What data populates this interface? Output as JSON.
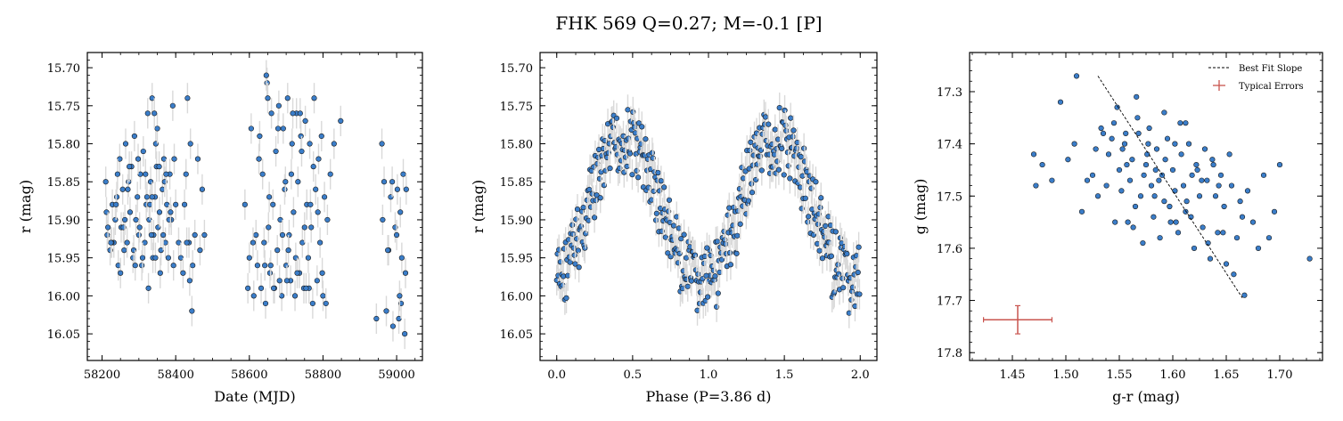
{
  "figure": {
    "title": "FHK 569  Q=0.27; M=-0.1 [P]",
    "point_color": "#3a7dc9",
    "point_edge_color": "#1a1a1a",
    "errorbar_color": "#d9d9d9",
    "typical_error_color": "#c9544f"
  },
  "chart_data": [
    {
      "type": "scatter",
      "xlabel": "Date (MJD)",
      "ylabel": "r (mag)",
      "xlim": [
        58160,
        59070
      ],
      "ylim": [
        16.085,
        15.68
      ],
      "y_inverted": true,
      "xticks": [
        58200,
        58400,
        58600,
        58800,
        59000
      ],
      "yticks": [
        15.7,
        15.75,
        15.8,
        15.85,
        15.9,
        15.95,
        16.0,
        16.05
      ],
      "xtick_labels": [
        "58200",
        "58400",
        "58600",
        "58800",
        "59000"
      ],
      "ytick_labels": [
        "15.70",
        "15.75",
        "15.80",
        "15.85",
        "15.90",
        "15.95",
        "16.00",
        "16.05"
      ],
      "y_error": 0.02,
      "series": [
        {
          "x": [
            58210,
            58214,
            58222,
            58228,
            58232,
            58236,
            58240,
            58244,
            58248,
            58252,
            58256,
            58260,
            58264,
            58268,
            58272,
            58276,
            58280,
            58284,
            58288,
            58292,
            58296,
            58300,
            58304,
            58308,
            58312,
            58316,
            58320,
            58324,
            58328,
            58332,
            58336,
            58338,
            58340,
            58344,
            58348,
            58352,
            58356,
            58360,
            58364,
            58368,
            58372,
            58376,
            58380,
            58384,
            58388,
            58392,
            58212,
            58226,
            58242,
            58258,
            58270,
            58286,
            58298,
            58310,
            58322,
            58334,
            58346,
            58358,
            58370,
            58382,
            58394,
            58400,
            58408,
            58414,
            58420,
            58428,
            58432,
            58436,
            58440,
            58446,
            58452,
            58460,
            58466,
            58472,
            58478,
            58345,
            58350,
            58355,
            58330,
            58326,
            58318,
            58302,
            58290,
            58274,
            58262,
            58250,
            58238,
            58224,
            58216,
            58342,
            58336,
            58366,
            58374,
            58386,
            58396,
            58444,
            58438,
            58430,
            58424
          ],
          "y": [
            15.85,
            15.92,
            15.94,
            15.88,
            15.93,
            15.9,
            15.87,
            15.96,
            15.82,
            15.91,
            15.86,
            15.94,
            15.8,
            15.93,
            15.85,
            15.89,
            15.83,
            15.95,
            15.79,
            15.9,
            15.87,
            15.92,
            15.84,
            15.96,
            15.81,
            15.93,
            15.88,
            15.76,
            15.9,
            15.85,
            15.74,
            15.95,
            15.92,
            15.87,
            15.83,
            15.91,
            15.89,
            15.94,
            15.86,
            15.82,
            15.93,
            15.88,
            15.95,
            15.84,
            15.9,
            15.75,
            15.89,
            15.93,
            15.84,
            15.91,
            15.86,
            15.94,
            15.82,
            15.95,
            15.87,
            15.92,
            15.8,
            15.97,
            15.85,
            15.9,
            15.96,
            15.88,
            15.93,
            15.95,
            15.97,
            15.84,
            15.74,
            15.93,
            15.8,
            15.96,
            15.92,
            15.82,
            15.94,
            15.86,
            15.92,
            15.95,
            15.78,
            15.83,
            15.88,
            15.99,
            15.84,
            15.91,
            15.96,
            15.83,
            15.9,
            15.97,
            15.88,
            15.93,
            15.91,
            15.76,
            15.87,
            15.92,
            15.84,
            15.89,
            15.82,
            16.02,
            15.98,
            15.93,
            15.88
          ]
        },
        {
          "x": [
            58588,
            58600,
            58605,
            58612,
            58618,
            58622,
            58628,
            58632,
            58636,
            58640,
            58644,
            58648,
            58652,
            58656,
            58660,
            58664,
            58668,
            58672,
            58676,
            58680,
            58684,
            58688,
            58692,
            58696,
            58700,
            58704,
            58708,
            58712,
            58716,
            58720,
            58724,
            58728,
            58732,
            58736,
            58740,
            58744,
            58748,
            58752,
            58756,
            58760,
            58764,
            58768,
            58772,
            58776,
            58780,
            58784,
            58788,
            58792,
            58796,
            58800,
            58804,
            58808,
            58812,
            58820,
            58830,
            58848,
            58596,
            58610,
            58626,
            58642,
            58654,
            58666,
            58678,
            58690,
            58702,
            58714,
            58726,
            58738,
            58750,
            58762,
            58774,
            58786,
            58798,
            58646,
            58650,
            58658,
            58682,
            58698,
            58706,
            58718,
            58730,
            58742,
            58754,
            58766
          ],
          "y": [
            15.88,
            15.95,
            15.78,
            16.0,
            15.92,
            15.96,
            15.79,
            15.99,
            15.84,
            15.93,
            16.01,
            15.72,
            15.91,
            15.97,
            15.76,
            15.88,
            15.99,
            15.81,
            15.94,
            15.75,
            15.9,
            16.0,
            15.78,
            15.86,
            15.96,
            15.74,
            15.92,
            15.98,
            15.8,
            15.89,
            16.0,
            15.76,
            15.85,
            15.97,
            15.79,
            15.93,
            15.99,
            15.77,
            15.88,
            15.95,
            15.8,
            15.91,
            16.01,
            15.74,
            15.86,
            15.98,
            15.82,
            15.93,
            15.79,
            16.0,
            15.87,
            16.01,
            15.9,
            15.84,
            15.8,
            15.77,
            15.99,
            15.93,
            15.82,
            15.96,
            15.87,
            15.99,
            15.78,
            15.92,
            15.98,
            15.84,
            15.95,
            15.76,
            15.91,
            15.99,
            15.83,
            15.89,
            15.97,
            15.71,
            15.74,
            15.96,
            15.98,
            15.85,
            15.94,
            15.76,
            15.97,
            15.81,
            15.99,
            15.88
          ]
        },
        {
          "x": [
            58945,
            58960,
            58966,
            58972,
            58978,
            58984,
            58990,
            58996,
            59002,
            59006,
            59010,
            59014,
            59018,
            59022,
            59026,
            58962,
            58976,
            58988,
            59000,
            59012,
            59024,
            59008
          ],
          "y": [
            16.03,
            15.8,
            15.85,
            16.02,
            15.94,
            15.87,
            16.04,
            15.91,
            15.86,
            16.03,
            15.89,
            15.95,
            15.84,
            16.05,
            15.86,
            15.9,
            15.94,
            15.85,
            15.92,
            16.01,
            15.97,
            16.0
          ]
        }
      ]
    },
    {
      "type": "scatter",
      "xlabel": "Phase (P=3.86 d)",
      "ylabel": "r (mag)",
      "xlim": [
        -0.11,
        2.11
      ],
      "ylim": [
        16.085,
        15.68
      ],
      "y_inverted": true,
      "xticks": [
        0.0,
        0.5,
        1.0,
        1.5,
        2.0
      ],
      "yticks": [
        15.7,
        15.75,
        15.8,
        15.85,
        15.9,
        15.95,
        16.0,
        16.05
      ],
      "xtick_labels": [
        "0.0",
        "0.5",
        "1.0",
        "1.5",
        "2.0"
      ],
      "ytick_labels": [
        "15.70",
        "15.75",
        "15.80",
        "15.85",
        "15.90",
        "15.95",
        "16.00",
        "16.05"
      ],
      "y_error": 0.02,
      "period_days": 3.86
    },
    {
      "type": "scatter",
      "xlabel": "g-r (mag)",
      "ylabel": "g (mag)",
      "xlim": [
        1.41,
        1.74
      ],
      "ylim": [
        17.815,
        17.225
      ],
      "y_inverted": true,
      "xticks": [
        1.45,
        1.5,
        1.55,
        1.6,
        1.65,
        1.7
      ],
      "yticks": [
        17.3,
        17.4,
        17.5,
        17.6,
        17.7,
        17.8
      ],
      "xtick_labels": [
        "1.45",
        "1.50",
        "1.55",
        "1.60",
        "1.65",
        "1.70"
      ],
      "ytick_labels": [
        "17.3",
        "17.4",
        "17.5",
        "17.6",
        "17.7",
        "17.8"
      ],
      "legend": {
        "position": "upper right",
        "entries": [
          "Best Fit Slope",
          "Typical Errors"
        ]
      },
      "best_fit_line": {
        "x": [
          1.53,
          1.665
        ],
        "y": [
          17.27,
          17.695
        ]
      },
      "typical_error": {
        "x": 1.455,
        "y": 17.737,
        "xerr": 0.032,
        "yerr": 0.027
      },
      "series": [
        {
          "x": [
            1.51,
            1.495,
            1.47,
            1.472,
            1.478,
            1.487,
            1.502,
            1.508,
            1.515,
            1.52,
            1.525,
            1.53,
            1.535,
            1.54,
            1.545,
            1.55,
            1.552,
            1.555,
            1.558,
            1.56,
            1.562,
            1.565,
            1.568,
            1.57,
            1.572,
            1.575,
            1.578,
            1.58,
            1.582,
            1.585,
            1.588,
            1.59,
            1.592,
            1.595,
            1.598,
            1.6,
            1.602,
            1.605,
            1.608,
            1.61,
            1.612,
            1.615,
            1.618,
            1.62,
            1.622,
            1.625,
            1.628,
            1.63,
            1.632,
            1.635,
            1.638,
            1.64,
            1.642,
            1.645,
            1.648,
            1.65,
            1.655,
            1.66,
            1.665,
            1.67,
            1.675,
            1.68,
            1.685,
            1.69,
            1.695,
            1.7,
            1.728,
            1.548,
            1.553,
            1.563,
            1.573,
            1.583,
            1.593,
            1.603,
            1.613,
            1.623,
            1.633,
            1.643,
            1.653,
            1.663,
            1.543,
            1.538,
            1.528,
            1.533,
            1.557,
            1.567,
            1.577,
            1.587,
            1.597,
            1.607,
            1.617,
            1.627,
            1.637,
            1.647,
            1.657,
            1.667,
            1.612,
            1.602,
            1.592,
            1.584,
            1.576,
            1.566,
            1.556,
            1.546
          ],
          "y": [
            17.27,
            17.32,
            17.42,
            17.48,
            17.44,
            17.47,
            17.43,
            17.4,
            17.53,
            17.47,
            17.46,
            17.5,
            17.38,
            17.42,
            17.36,
            17.45,
            17.49,
            17.4,
            17.55,
            17.47,
            17.43,
            17.52,
            17.38,
            17.5,
            17.59,
            17.44,
            17.37,
            17.48,
            17.54,
            17.41,
            17.58,
            17.46,
            17.51,
            17.39,
            17.55,
            17.45,
            17.49,
            17.57,
            17.42,
            17.48,
            17.53,
            17.4,
            17.46,
            17.6,
            17.44,
            17.5,
            17.56,
            17.41,
            17.47,
            17.62,
            17.44,
            17.5,
            17.57,
            17.46,
            17.52,
            17.63,
            17.48,
            17.58,
            17.54,
            17.49,
            17.55,
            17.6,
            17.46,
            17.58,
            17.53,
            17.44,
            17.62,
            17.33,
            17.41,
            17.56,
            17.46,
            17.5,
            17.43,
            17.55,
            17.51,
            17.45,
            17.59,
            17.48,
            17.42,
            17.51,
            17.39,
            17.48,
            17.41,
            17.37,
            17.44,
            17.35,
            17.4,
            17.47,
            17.52,
            17.36,
            17.54,
            17.47,
            17.43,
            17.57,
            17.65,
            17.69,
            17.36,
            17.4,
            17.34,
            17.45,
            17.42,
            17.31,
            17.38,
            17.55
          ]
        }
      ]
    }
  ]
}
